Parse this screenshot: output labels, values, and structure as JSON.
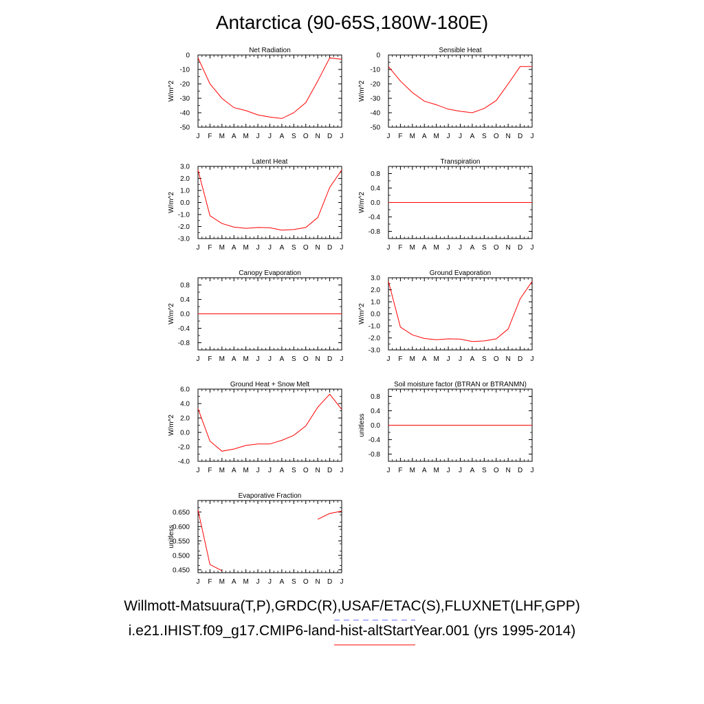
{
  "page": {
    "title": "Antarctica (90-65S,180W-180E)",
    "legend": {
      "obs_label": "Willmott-Matsuura(T,P),GRDC(R),USAF/ETAC(S),FLUXNET(LHF,GPP)",
      "obs_color": "#6666ff",
      "model_label": "i.e21.IHIST.f09_g17.CMIP6-land-hist-altStartYear.001 (yrs 1995-2014)",
      "model_color": "#ff0000"
    }
  },
  "chart_data": [
    {
      "type": "line",
      "title": "Net Radiation",
      "ylabel": "W/m^2",
      "xticks": [
        "J",
        "F",
        "M",
        "A",
        "M",
        "J",
        "J",
        "A",
        "S",
        "O",
        "N",
        "D",
        "J"
      ],
      "ylim": [
        -50,
        0
      ],
      "yticks": [
        "0",
        "-10",
        "-20",
        "-30",
        "-40",
        "-50"
      ],
      "ytick_values": [
        0,
        -10,
        -20,
        -30,
        -40,
        -50
      ],
      "series": [
        {
          "color": "#ff0000",
          "values": [
            -2,
            -20,
            -30,
            -36.5,
            -38.5,
            -41.5,
            -43,
            -44,
            -40,
            -33,
            -18,
            -2,
            -3
          ]
        }
      ]
    },
    {
      "type": "line",
      "title": "Sensible Heat",
      "ylabel": "W/m^2",
      "xticks": [
        "J",
        "F",
        "M",
        "A",
        "M",
        "J",
        "J",
        "A",
        "S",
        "O",
        "N",
        "D",
        "J"
      ],
      "ylim": [
        -50,
        0
      ],
      "yticks": [
        "0",
        "-10",
        "-20",
        "-30",
        "-40",
        "-50"
      ],
      "ytick_values": [
        0,
        -10,
        -20,
        -30,
        -40,
        -50
      ],
      "series": [
        {
          "color": "#ff0000",
          "values": [
            -8,
            -18,
            -26,
            -32,
            -34.5,
            -37.5,
            -39,
            -40,
            -37,
            -31.5,
            -20,
            -8,
            -8
          ]
        }
      ]
    },
    {
      "type": "line",
      "title": "Latent Heat",
      "ylabel": "W/m^2",
      "xticks": [
        "J",
        "F",
        "M",
        "A",
        "M",
        "J",
        "J",
        "A",
        "S",
        "O",
        "N",
        "D",
        "J"
      ],
      "ylim": [
        -3,
        3
      ],
      "yticks": [
        "3.0",
        "2.0",
        "1.0",
        "0.0",
        "-1.0",
        "-2.0",
        "-3.0"
      ],
      "ytick_values": [
        3,
        2,
        1,
        0,
        -1,
        -2,
        -3
      ],
      "series": [
        {
          "color": "#ff0000",
          "values": [
            2.7,
            -1.1,
            -1.75,
            -2.05,
            -2.15,
            -2.08,
            -2.1,
            -2.3,
            -2.25,
            -2.08,
            -1.25,
            1.25,
            2.7
          ]
        }
      ]
    },
    {
      "type": "line",
      "title": "Transpiration",
      "ylabel": "W/m^2",
      "xticks": [
        "J",
        "F",
        "M",
        "A",
        "M",
        "J",
        "J",
        "A",
        "S",
        "O",
        "N",
        "D",
        "J"
      ],
      "ylim": [
        -1,
        1
      ],
      "yticks": [
        "0.8",
        "0.4",
        "0.0",
        "-0.4",
        "-0.8"
      ],
      "ytick_values": [
        0.8,
        0.4,
        0,
        -0.4,
        -0.8
      ],
      "series": [
        {
          "color": "#ff0000",
          "values": [
            0,
            0,
            0,
            0,
            0,
            0,
            0,
            0,
            0,
            0,
            0,
            0,
            0
          ]
        }
      ]
    },
    {
      "type": "line",
      "title": "Canopy Evaporation",
      "ylabel": "W/m^2",
      "xticks": [
        "J",
        "F",
        "M",
        "A",
        "M",
        "J",
        "J",
        "A",
        "S",
        "O",
        "N",
        "D",
        "J"
      ],
      "ylim": [
        -1,
        1
      ],
      "yticks": [
        "0.8",
        "0.4",
        "0.0",
        "-0.4",
        "-0.8"
      ],
      "ytick_values": [
        0.8,
        0.4,
        0,
        -0.4,
        -0.8
      ],
      "series": [
        {
          "color": "#ff0000",
          "values": [
            0,
            0,
            0,
            0,
            0,
            0,
            0,
            0,
            0,
            0,
            0,
            0,
            0
          ]
        }
      ]
    },
    {
      "type": "line",
      "title": "Ground Evaporation",
      "ylabel": "W/m^2",
      "xticks": [
        "J",
        "F",
        "M",
        "A",
        "M",
        "J",
        "J",
        "A",
        "S",
        "O",
        "N",
        "D",
        "J"
      ],
      "ylim": [
        -3,
        3
      ],
      "yticks": [
        "3.0",
        "2.0",
        "1.0",
        "0.0",
        "-1.0",
        "-2.0",
        "-3.0"
      ],
      "ytick_values": [
        3,
        2,
        1,
        0,
        -1,
        -2,
        -3
      ],
      "series": [
        {
          "color": "#ff0000",
          "values": [
            2.7,
            -1.1,
            -1.75,
            -2.05,
            -2.15,
            -2.08,
            -2.1,
            -2.3,
            -2.25,
            -2.08,
            -1.25,
            1.25,
            2.7
          ]
        }
      ]
    },
    {
      "type": "line",
      "title": "Ground Heat + Snow Melt",
      "ylabel": "W/m^2",
      "xticks": [
        "J",
        "F",
        "M",
        "A",
        "M",
        "J",
        "J",
        "A",
        "S",
        "O",
        "N",
        "D",
        "J"
      ],
      "ylim": [
        -4,
        6
      ],
      "yticks": [
        "6.0",
        "4.0",
        "2.0",
        "0.0",
        "-2.0",
        "-4.0"
      ],
      "ytick_values": [
        6,
        4,
        2,
        0,
        -2,
        -4
      ],
      "series": [
        {
          "color": "#ff0000",
          "values": [
            3.3,
            -1.2,
            -2.6,
            -2.3,
            -1.8,
            -1.6,
            -1.6,
            -1.1,
            -0.4,
            0.9,
            3.5,
            5.3,
            3.2
          ]
        }
      ]
    },
    {
      "type": "line",
      "title": "Soil moisture factor (BTRAN or BTRANMN)",
      "ylabel": "unitless",
      "xticks": [
        "J",
        "F",
        "M",
        "A",
        "M",
        "J",
        "J",
        "A",
        "S",
        "O",
        "N",
        "D",
        "J"
      ],
      "ylim": [
        -1,
        1
      ],
      "yticks": [
        "0.8",
        "0.4",
        "0.0",
        "-0.4",
        "-0.8"
      ],
      "ytick_values": [
        0.8,
        0.4,
        0,
        -0.4,
        -0.8
      ],
      "series": [
        {
          "color": "#ff0000",
          "values": [
            0,
            0,
            0,
            0,
            0,
            0,
            0,
            0,
            0,
            0,
            0,
            0,
            0
          ]
        }
      ]
    },
    {
      "type": "line",
      "title": "Evaporative Fraction",
      "ylabel": "unitless",
      "xticks": [
        "J",
        "F",
        "M",
        "A",
        "M",
        "J",
        "J",
        "A",
        "S",
        "O",
        "N",
        "D",
        "J"
      ],
      "ylim": [
        0.44,
        0.69
      ],
      "yticks": [
        "0.650",
        "0.600",
        "0.550",
        "0.500",
        "0.450"
      ],
      "ytick_values": [
        0.65,
        0.6,
        0.55,
        0.5,
        0.45
      ],
      "series": [
        {
          "color": "#ff0000",
          "values": [
            0.657,
            0.468,
            0.447,
            null,
            null,
            null,
            null,
            null,
            null,
            null,
            0.625,
            0.645,
            0.653
          ]
        }
      ]
    }
  ]
}
